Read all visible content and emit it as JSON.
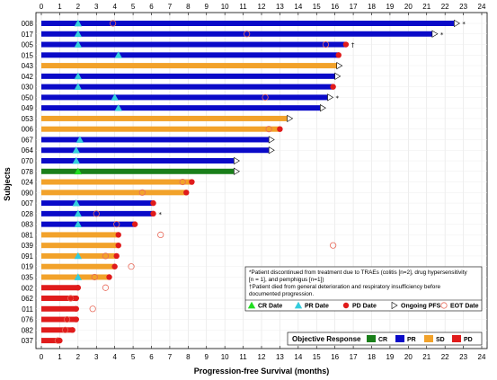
{
  "chart_data": {
    "type": "bar",
    "orientation": "horizontal",
    "xlabel": "Progression-free Survival (months)",
    "ylabel": "Subjects",
    "xlim": [
      0,
      24
    ],
    "xticks": [
      "0",
      "1",
      "2",
      "3",
      "4",
      "5",
      "6",
      "7",
      "8",
      "9",
      "10",
      "11",
      "12",
      "13",
      "14",
      "15",
      "16",
      "17",
      "18",
      "19",
      "20",
      "21",
      "22",
      "23",
      "24"
    ],
    "grid": true,
    "colors": {
      "CR": "#1a7f1a",
      "PR": "#0a0ac8",
      "SD": "#f2a22a",
      "PD": "#e01b1b",
      "CR_marker": "#22dd22",
      "PR_marker": "#33ccdd"
    },
    "subjects": [
      {
        "id": "008",
        "response": "PR",
        "pfs": 22.5,
        "cr": null,
        "pr": 2.0,
        "pd": null,
        "ongoing": true,
        "eot": 3.9,
        "mark": "*"
      },
      {
        "id": "017",
        "response": "PR",
        "pfs": 21.3,
        "cr": null,
        "pr": 2.0,
        "pd": null,
        "ongoing": true,
        "eot": 11.2,
        "mark": "*"
      },
      {
        "id": "005",
        "response": "PR",
        "pfs": 16.6,
        "cr": null,
        "pr": 2.0,
        "pd": 16.6,
        "ongoing": false,
        "eot": 15.5,
        "mark": "†"
      },
      {
        "id": "015",
        "response": "PR",
        "pfs": 16.2,
        "cr": null,
        "pr": 4.2,
        "pd": 16.2,
        "ongoing": false,
        "eot": null,
        "mark": ""
      },
      {
        "id": "043",
        "response": "SD",
        "pfs": 16.1,
        "cr": null,
        "pr": null,
        "pd": null,
        "ongoing": true,
        "eot": null,
        "mark": ""
      },
      {
        "id": "042",
        "response": "PR",
        "pfs": 16.0,
        "cr": null,
        "pr": 2.0,
        "pd": null,
        "ongoing": true,
        "eot": null,
        "mark": ""
      },
      {
        "id": "030",
        "response": "PR",
        "pfs": 15.9,
        "cr": null,
        "pr": 2.0,
        "pd": 15.9,
        "ongoing": false,
        "eot": null,
        "mark": ""
      },
      {
        "id": "050",
        "response": "PR",
        "pfs": 15.6,
        "cr": null,
        "pr": 4.0,
        "pd": null,
        "ongoing": true,
        "eot": 12.2,
        "mark": "*"
      },
      {
        "id": "049",
        "response": "PR",
        "pfs": 15.2,
        "cr": null,
        "pr": 4.2,
        "pd": null,
        "ongoing": true,
        "eot": null,
        "mark": ""
      },
      {
        "id": "053",
        "response": "SD",
        "pfs": 13.4,
        "cr": null,
        "pr": null,
        "pd": null,
        "ongoing": true,
        "eot": null,
        "mark": ""
      },
      {
        "id": "006",
        "response": "SD",
        "pfs": 13.0,
        "cr": null,
        "pr": null,
        "pd": 13.0,
        "ongoing": false,
        "eot": 12.4,
        "mark": ""
      },
      {
        "id": "067",
        "response": "PR",
        "pfs": 12.4,
        "cr": null,
        "pr": 2.1,
        "pd": null,
        "ongoing": true,
        "eot": null,
        "mark": ""
      },
      {
        "id": "064",
        "response": "PR",
        "pfs": 12.4,
        "cr": null,
        "pr": 1.9,
        "pd": null,
        "ongoing": true,
        "eot": null,
        "mark": ""
      },
      {
        "id": "070",
        "response": "PR",
        "pfs": 10.5,
        "cr": null,
        "pr": 1.9,
        "pd": null,
        "ongoing": true,
        "eot": null,
        "mark": ""
      },
      {
        "id": "078",
        "response": "CR",
        "pfs": 10.5,
        "cr": 2.0,
        "pr": null,
        "pd": null,
        "ongoing": true,
        "eot": null,
        "mark": ""
      },
      {
        "id": "024",
        "response": "SD",
        "pfs": 8.2,
        "cr": null,
        "pr": null,
        "pd": 8.2,
        "ongoing": false,
        "eot": 7.7,
        "mark": ""
      },
      {
        "id": "090",
        "response": "SD",
        "pfs": 7.9,
        "cr": null,
        "pr": null,
        "pd": 7.9,
        "ongoing": false,
        "eot": 5.5,
        "mark": ""
      },
      {
        "id": "007",
        "response": "PR",
        "pfs": 6.1,
        "cr": null,
        "pr": 1.9,
        "pd": 6.1,
        "ongoing": false,
        "eot": null,
        "mark": ""
      },
      {
        "id": "028",
        "response": "PR",
        "pfs": 6.1,
        "cr": null,
        "pr": 2.0,
        "pd": 6.1,
        "ongoing": false,
        "eot": 3.0,
        "mark": "*"
      },
      {
        "id": "083",
        "response": "PR",
        "pfs": 5.1,
        "cr": null,
        "pr": 2.0,
        "pd": 5.1,
        "ongoing": false,
        "eot": 4.1,
        "mark": ""
      },
      {
        "id": "081",
        "response": "SD",
        "pfs": 4.2,
        "cr": null,
        "pr": null,
        "pd": 4.2,
        "ongoing": false,
        "eot": 6.5,
        "mark": ""
      },
      {
        "id": "039",
        "response": "SD",
        "pfs": 4.2,
        "cr": null,
        "pr": null,
        "pd": 4.2,
        "ongoing": false,
        "eot": 15.9,
        "mark": ""
      },
      {
        "id": "091",
        "response": "SD",
        "pfs": 4.1,
        "cr": null,
        "pr": 2.0,
        "pd": 4.1,
        "ongoing": false,
        "eot": 3.5,
        "mark": ""
      },
      {
        "id": "019",
        "response": "SD",
        "pfs": 4.0,
        "cr": null,
        "pr": null,
        "pd": 4.0,
        "ongoing": false,
        "eot": 4.9,
        "mark": ""
      },
      {
        "id": "035",
        "response": "SD",
        "pfs": 3.7,
        "cr": null,
        "pr": 2.0,
        "pd": 3.7,
        "ongoing": false,
        "eot": 2.9,
        "mark": ""
      },
      {
        "id": "002",
        "response": "PD",
        "pfs": 2.0,
        "cr": null,
        "pr": null,
        "pd": 2.0,
        "ongoing": false,
        "eot": 3.5,
        "mark": ""
      },
      {
        "id": "062",
        "response": "PD",
        "pfs": 1.9,
        "cr": null,
        "pr": null,
        "pd": 1.9,
        "ongoing": false,
        "eot": 1.6,
        "mark": ""
      },
      {
        "id": "011",
        "response": "PD",
        "pfs": 1.9,
        "cr": null,
        "pr": null,
        "pd": 1.9,
        "ongoing": false,
        "eot": 2.8,
        "mark": ""
      },
      {
        "id": "076",
        "response": "PD",
        "pfs": 1.9,
        "cr": null,
        "pr": null,
        "pd": 1.9,
        "ongoing": false,
        "eot": 1.4,
        "mark": ""
      },
      {
        "id": "082",
        "response": "PD",
        "pfs": 1.7,
        "cr": null,
        "pr": null,
        "pd": 1.7,
        "ongoing": false,
        "eot": 1.3,
        "mark": ""
      },
      {
        "id": "037",
        "response": "PD",
        "pfs": 1.0,
        "cr": null,
        "pr": null,
        "pd": 1.0,
        "ongoing": false,
        "eot": 0.9,
        "mark": ""
      }
    ],
    "footnotes": [
      "*Patient discontinued from treatment due to TRAEs (colitis [n=2], drug hypersensitivity",
      "[n = 1], and pemphigus [n=1])",
      "†Patient died from general deterioration and respiratory insufficiency before",
      "documented progression."
    ],
    "marker_legend": [
      "CR Date",
      "PR Date",
      "PD Date",
      "Ongoing PFS",
      "EOT Date"
    ],
    "response_legend": {
      "title": "Objective Response",
      "items": [
        "CR",
        "PR",
        "SD",
        "PD"
      ]
    }
  }
}
